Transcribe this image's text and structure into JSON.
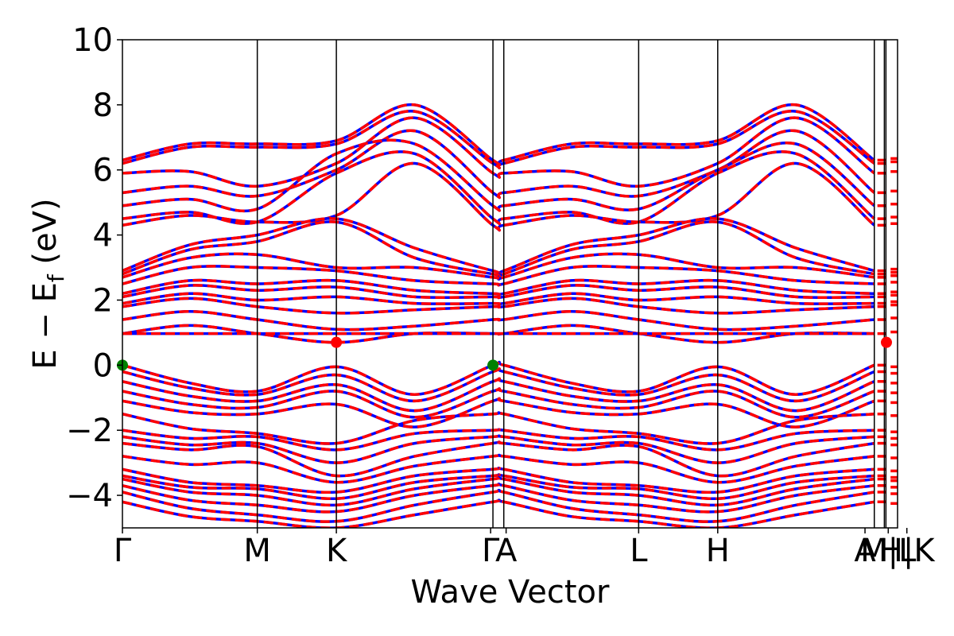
{
  "chart_data": {
    "type": "line",
    "title": "",
    "xlabel": "Wave Vector",
    "ylabel": "E − E_f (eV)",
    "ylabel_parts": {
      "main": "E − E",
      "sub": "f",
      "unit": " (eV)"
    },
    "ylim": [
      -5,
      10
    ],
    "yticks": [
      -4,
      -2,
      0,
      2,
      4,
      6,
      8,
      10
    ],
    "ytick_labels": [
      "−4",
      "−2",
      "0",
      "2",
      "4",
      "6",
      "8",
      "10"
    ],
    "xlim": [
      0,
      1
    ],
    "kpath": [
      {
        "label": "Γ",
        "x": 0.0
      },
      {
        "label": "M",
        "x": 0.174
      },
      {
        "label": "K",
        "x": 0.276
      },
      {
        "label": "Γ",
        "x": 0.478
      },
      {
        "label": "A",
        "x": 0.492
      },
      {
        "label": "L",
        "x": 0.666
      },
      {
        "label": "H",
        "x": 0.768
      },
      {
        "label": "A",
        "x": 0.97
      },
      {
        "label": "L",
        "x": 0.985
      },
      {
        "label": "M",
        "x": 0.985
      },
      {
        "label": "H",
        "x": 1.0
      },
      {
        "label": "K",
        "x": 1.0
      }
    ],
    "kpath_label_text": [
      "Γ",
      "M",
      "K",
      "Γ",
      "A",
      "L",
      "H",
      "A",
      "M|L",
      "H|K"
    ],
    "series": [
      {
        "color": "#0000ff",
        "style": "solid"
      },
      {
        "color": "#ff0000",
        "style": "dashed"
      }
    ],
    "band_anchors": {
      "conduction": [
        {
          "G": 6.3,
          "M": 6.8,
          "K": 6.9,
          "L": 6.8,
          "H": 6.9,
          "peak": 8.0
        },
        {
          "G": 6.2,
          "M": 6.7,
          "K": 6.8,
          "L": 6.7,
          "H": 6.8,
          "peak": 7.8
        },
        {
          "G": 5.9,
          "M": 5.5,
          "K": 6.2,
          "L": 5.5,
          "H": 6.2,
          "peak": 7.6
        },
        {
          "G": 5.3,
          "M": 5.2,
          "K": 6.0,
          "L": 5.2,
          "H": 6.0,
          "peak": 7.2
        },
        {
          "G": 4.9,
          "M": 4.8,
          "K": 6.5,
          "L": 4.8,
          "H": 6.0,
          "peak": 6.8
        },
        {
          "G": 4.5,
          "M": 4.4,
          "K": 5.9,
          "L": 4.4,
          "H": 5.9,
          "peak": 6.5
        },
        {
          "G": 4.3,
          "M": 4.4,
          "K": 4.6,
          "L": 4.4,
          "H": 4.6,
          "peak": 6.2
        },
        {
          "G": 2.9,
          "M": 4.0,
          "K": 4.5,
          "L": 4.0,
          "H": 4.5,
          "peak": 3.6
        },
        {
          "G": 2.8,
          "M": 3.8,
          "K": 4.4,
          "L": 3.8,
          "H": 4.4,
          "peak": 3.3
        },
        {
          "G": 2.7,
          "M": 3.4,
          "K": 3.0,
          "L": 3.4,
          "H": 3.0,
          "peak": 3.0
        },
        {
          "G": 2.5,
          "M": 3.0,
          "K": 2.9,
          "L": 3.0,
          "H": 2.9,
          "peak": 2.6
        },
        {
          "G": 2.2,
          "M": 2.5,
          "K": 2.6,
          "L": 2.5,
          "H": 2.6,
          "peak": 2.3
        },
        {
          "G": 2.1,
          "M": 2.3,
          "K": 2.4,
          "L": 2.3,
          "H": 2.4,
          "peak": 2.1
        },
        {
          "G": 1.9,
          "M": 2.0,
          "K": 2.1,
          "L": 2.0,
          "H": 2.1,
          "peak": 1.9
        },
        {
          "G": 1.8,
          "M": 1.8,
          "K": 1.6,
          "L": 1.8,
          "H": 1.6,
          "peak": 1.7
        },
        {
          "G": 1.4,
          "M": 1.4,
          "K": 1.1,
          "L": 1.4,
          "H": 1.1,
          "peak": 1.2
        },
        {
          "G": 0.97,
          "M": 0.97,
          "K": 0.7,
          "L": 0.97,
          "H": 0.7,
          "peak": 0.97
        }
      ],
      "valence": [
        {
          "G": 0.0,
          "M": -0.8,
          "K": -0.05,
          "L": -0.8,
          "H": -0.05,
          "dip": -0.9
        },
        {
          "G": -0.2,
          "M": -0.9,
          "K": -0.3,
          "L": -0.9,
          "H": -0.3,
          "dip": -1.1
        },
        {
          "G": -0.5,
          "M": -1.1,
          "K": -0.6,
          "L": -1.1,
          "H": -0.6,
          "dip": -1.4
        },
        {
          "G": -0.8,
          "M": -1.3,
          "K": -0.8,
          "L": -1.3,
          "H": -0.8,
          "dip": -1.6
        },
        {
          "G": -1.1,
          "M": -1.5,
          "K": -1.2,
          "L": -1.5,
          "H": -1.2,
          "dip": -1.9
        },
        {
          "G": -1.5,
          "M": -2.1,
          "K": -2.4,
          "L": -2.1,
          "H": -2.4,
          "dip": -1.7
        },
        {
          "G": -2.0,
          "M": -2.2,
          "K": -2.6,
          "L": -2.2,
          "H": -2.6,
          "dip": -2.1
        },
        {
          "G": -2.2,
          "M": -2.4,
          "K": -3.0,
          "L": -2.4,
          "H": -3.0,
          "dip": -2.4
        },
        {
          "G": -2.4,
          "M": -2.5,
          "K": -3.4,
          "L": -2.5,
          "H": -3.4,
          "dip": -2.8
        },
        {
          "G": -2.8,
          "M": -3.0,
          "K": -3.6,
          "L": -3.0,
          "H": -3.6,
          "dip": -3.1
        },
        {
          "G": -3.2,
          "M": -3.7,
          "K": -3.9,
          "L": -3.7,
          "H": -3.9,
          "dip": -3.4
        },
        {
          "G": -3.4,
          "M": -3.8,
          "K": -4.1,
          "L": -3.8,
          "H": -4.1,
          "dip": -3.6
        },
        {
          "G": -3.5,
          "M": -4.0,
          "K": -4.3,
          "L": -4.0,
          "H": -4.3,
          "dip": -3.8
        },
        {
          "G": -3.7,
          "M": -4.3,
          "K": -4.5,
          "L": -4.3,
          "H": -4.5,
          "dip": -4.0
        },
        {
          "G": -3.9,
          "M": -4.6,
          "K": -4.8,
          "L": -4.6,
          "H": -4.8,
          "dip": -4.3
        },
        {
          "G": -4.2,
          "M": -4.8,
          "K": -5.0,
          "L": -4.8,
          "H": -5.0,
          "dip": -4.6
        }
      ]
    },
    "flat_band": 0.97,
    "markers": {
      "vbm": {
        "color": "#008000",
        "energy": 0.0
      },
      "cbm": {
        "color": "#ff0000",
        "energy": 0.7
      }
    },
    "grid": false,
    "legend": "none"
  }
}
